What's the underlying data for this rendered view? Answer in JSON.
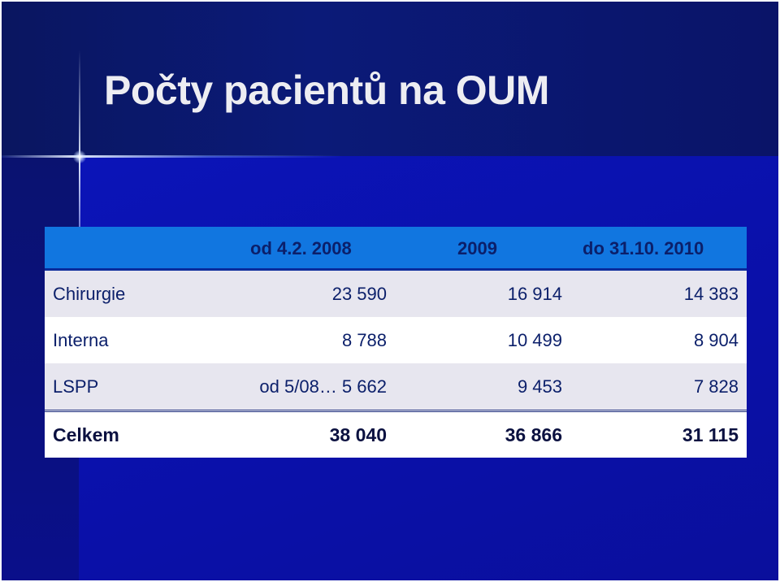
{
  "slide": {
    "title": "Počty pacientů na OUM"
  },
  "table": {
    "headers": [
      "",
      "od 4.2. 2008",
      "2009",
      "do  31.10. 2010"
    ],
    "rows": [
      {
        "label": "Chirurgie",
        "values": [
          "23 590",
          "16 914",
          "14 383"
        ]
      },
      {
        "label": "Interna",
        "values": [
          "8 788",
          "10 499",
          "8 904"
        ]
      },
      {
        "label": "LSPP",
        "values": [
          "od 5/08… 5 662",
          "9 453",
          "7 828"
        ]
      }
    ],
    "total": {
      "label": "Celkem",
      "values": [
        "38 040",
        "36 866",
        "31 115"
      ]
    }
  },
  "colors": {
    "background": "#0a0f9c",
    "header_row": "#1176e0",
    "stripe_row": "#e7e6ef",
    "text": "#0b1f6a"
  }
}
